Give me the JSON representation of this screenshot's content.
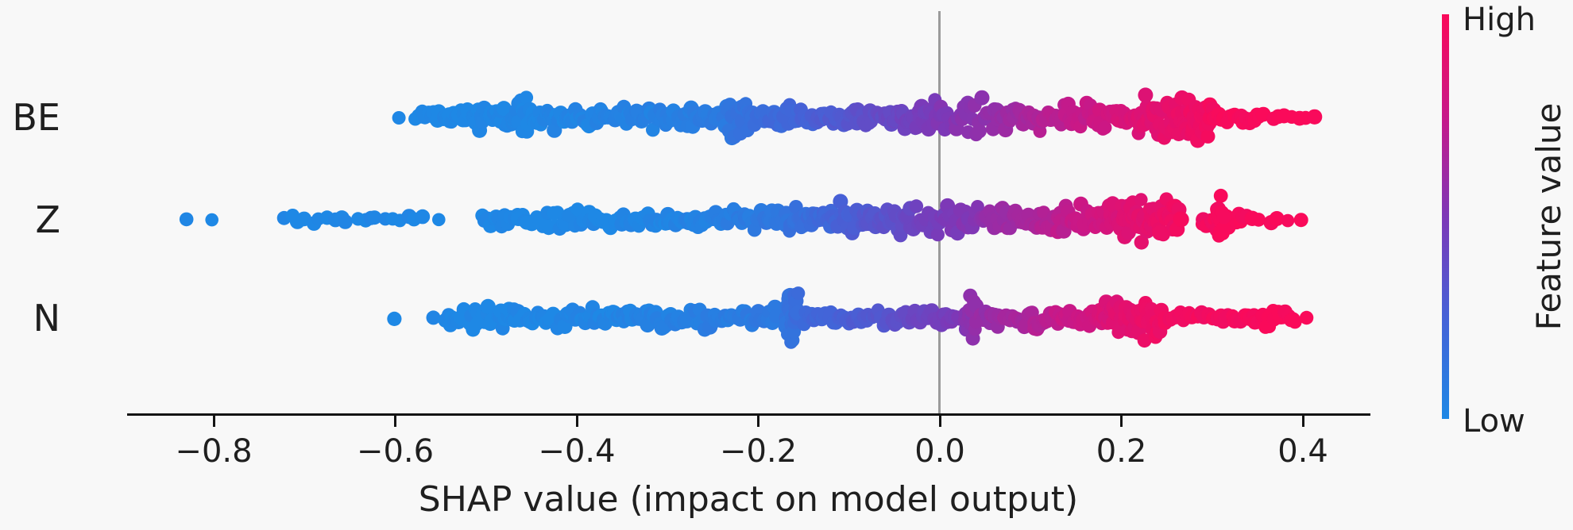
{
  "figure": {
    "background_color": "#f8f8f8"
  },
  "x_axis": {
    "label": "SHAP value (impact on model output)",
    "ticks": [
      {
        "value": -0.8,
        "label": "−0.8"
      },
      {
        "value": -0.6,
        "label": "−0.6"
      },
      {
        "value": -0.4,
        "label": "−0.4"
      },
      {
        "value": -0.2,
        "label": "−0.2"
      },
      {
        "value": 0.0,
        "label": "0.0"
      },
      {
        "value": 0.2,
        "label": "0.2"
      },
      {
        "value": 0.4,
        "label": "0.4"
      }
    ],
    "range": [
      -0.894,
      0.474
    ]
  },
  "zero_line": {
    "value": 0.0,
    "color": "#9b9b9b"
  },
  "colorbar": {
    "high_label": "High",
    "low_label": "Low",
    "title": "Feature value",
    "stops": [
      {
        "t": 0.0,
        "color": "#1e88e5"
      },
      {
        "t": 0.25,
        "color": "#4562d7"
      },
      {
        "t": 0.5,
        "color": "#7d38b7"
      },
      {
        "t": 0.75,
        "color": "#c81888"
      },
      {
        "t": 1.0,
        "color": "#fa0a5a"
      }
    ]
  },
  "chart_data": {
    "type": "scatter",
    "subtype": "shap_beeswarm_summary",
    "xlabel": "SHAP value (impact on model output)",
    "x_tick_values": [
      -0.8,
      -0.6,
      -0.4,
      -0.2,
      0.0,
      0.2,
      0.4
    ],
    "xlim": [
      -0.894,
      0.474
    ],
    "color_low": "#1e88e5",
    "color_high": "#fa0a5a",
    "legend": {
      "title": "Feature value",
      "high": "High",
      "low": "Low"
    },
    "segment_format": [
      "shap_start",
      "shap_end",
      "n_points",
      "half_thickness_px",
      "feature_value_t_start",
      "feature_value_t_end"
    ],
    "features": [
      {
        "label": "BE",
        "shap_min": -0.6,
        "shap_max": 0.41,
        "dense_region": [
          0.22,
          0.3
        ],
        "spike_at": -0.22,
        "segments": [
          [
            -0.596,
            -0.596,
            1,
            2,
            0,
            0
          ],
          [
            -0.578,
            -0.545,
            12,
            11,
            0,
            0
          ],
          [
            -0.545,
            -0.468,
            42,
            23,
            0,
            0.01
          ],
          [
            -0.468,
            -0.425,
            30,
            29,
            0.01,
            0.02
          ],
          [
            -0.425,
            -0.37,
            28,
            17,
            0.02,
            0.03
          ],
          [
            -0.37,
            -0.3,
            32,
            20,
            0.03,
            0.05
          ],
          [
            -0.3,
            -0.242,
            26,
            19,
            0.05,
            0.1
          ],
          [
            -0.238,
            -0.206,
            24,
            33,
            0.1,
            0.16
          ],
          [
            -0.206,
            -0.14,
            30,
            19,
            0.17,
            0.25
          ],
          [
            -0.14,
            -0.042,
            46,
            22,
            0.26,
            0.42
          ],
          [
            -0.042,
            0.0,
            24,
            31,
            0.43,
            0.5
          ],
          [
            0.0,
            0.09,
            46,
            27,
            0.5,
            0.63
          ],
          [
            0.09,
            0.17,
            40,
            23,
            0.64,
            0.76
          ],
          [
            0.17,
            0.218,
            26,
            23,
            0.77,
            0.85
          ],
          [
            0.218,
            0.302,
            72,
            44,
            0.86,
            0.97
          ],
          [
            0.302,
            0.352,
            18,
            13,
            0.97,
            1
          ],
          [
            0.352,
            0.412,
            9,
            5,
            1,
            1
          ]
        ]
      },
      {
        "label": "Z",
        "shap_min": -0.83,
        "shap_max": 0.4,
        "dense_region": [
          0.19,
          0.27
        ],
        "spike_at": 0.31,
        "segments": [
          [
            -0.83,
            -0.83,
            1,
            2,
            0,
            0
          ],
          [
            -0.802,
            -0.802,
            1,
            2,
            0,
            0
          ],
          [
            -0.724,
            -0.572,
            20,
            8,
            0,
            0
          ],
          [
            -0.552,
            -0.552,
            1,
            2,
            0,
            0
          ],
          [
            -0.504,
            -0.432,
            24,
            14,
            0,
            0
          ],
          [
            -0.432,
            -0.3,
            48,
            17,
            0,
            0.02
          ],
          [
            -0.3,
            -0.25,
            22,
            14,
            0.02,
            0.05
          ],
          [
            -0.25,
            -0.17,
            34,
            18,
            0.05,
            0.12
          ],
          [
            -0.17,
            -0.12,
            26,
            25,
            0.13,
            0.22
          ],
          [
            -0.12,
            -0.042,
            40,
            29,
            0.23,
            0.38
          ],
          [
            -0.042,
            0.048,
            42,
            25,
            0.4,
            0.55
          ],
          [
            0.048,
            0.13,
            40,
            23,
            0.56,
            0.7
          ],
          [
            0.13,
            0.188,
            30,
            25,
            0.71,
            0.82
          ],
          [
            0.188,
            0.266,
            64,
            41,
            0.83,
            0.96
          ],
          [
            0.289,
            0.337,
            22,
            14,
            0.96,
            0.99
          ],
          [
            0.305,
            0.313,
            16,
            47,
            0.97,
            0.99
          ],
          [
            0.345,
            0.385,
            5,
            6,
            1,
            1
          ],
          [
            0.398,
            0.398,
            1,
            2,
            1,
            1
          ]
        ]
      },
      {
        "label": "N",
        "shap_min": -0.6,
        "shap_max": 0.41,
        "dense_region": [
          0.18,
          0.25
        ],
        "spike_at": -0.16,
        "segments": [
          [
            -0.601,
            -0.601,
            1,
            2,
            0,
            0
          ],
          [
            -0.558,
            -0.558,
            1,
            1.5,
            0,
            0
          ],
          [
            -0.545,
            -0.47,
            40,
            19,
            0,
            0
          ],
          [
            -0.47,
            -0.37,
            42,
            15,
            0,
            0.02
          ],
          [
            -0.37,
            -0.295,
            34,
            15,
            0.02,
            0.05
          ],
          [
            -0.295,
            -0.18,
            48,
            16,
            0.05,
            0.1
          ],
          [
            -0.17,
            -0.156,
            26,
            54,
            0.12,
            0.18
          ],
          [
            -0.15,
            -0.042,
            40,
            12,
            0.2,
            0.36
          ],
          [
            -0.042,
            0.022,
            26,
            14,
            0.38,
            0.5
          ],
          [
            0.028,
            0.04,
            18,
            42,
            0.52,
            0.58
          ],
          [
            0.046,
            0.104,
            28,
            14,
            0.58,
            0.67
          ],
          [
            0.104,
            0.13,
            16,
            21,
            0.68,
            0.73
          ],
          [
            0.13,
            0.176,
            24,
            15,
            0.74,
            0.82
          ],
          [
            0.176,
            0.246,
            58,
            33,
            0.83,
            0.95
          ],
          [
            0.246,
            0.355,
            34,
            12,
            0.95,
            0.99
          ],
          [
            0.355,
            0.392,
            14,
            17,
            1,
            1
          ],
          [
            0.404,
            0.404,
            1,
            2,
            1,
            1
          ]
        ]
      }
    ]
  }
}
